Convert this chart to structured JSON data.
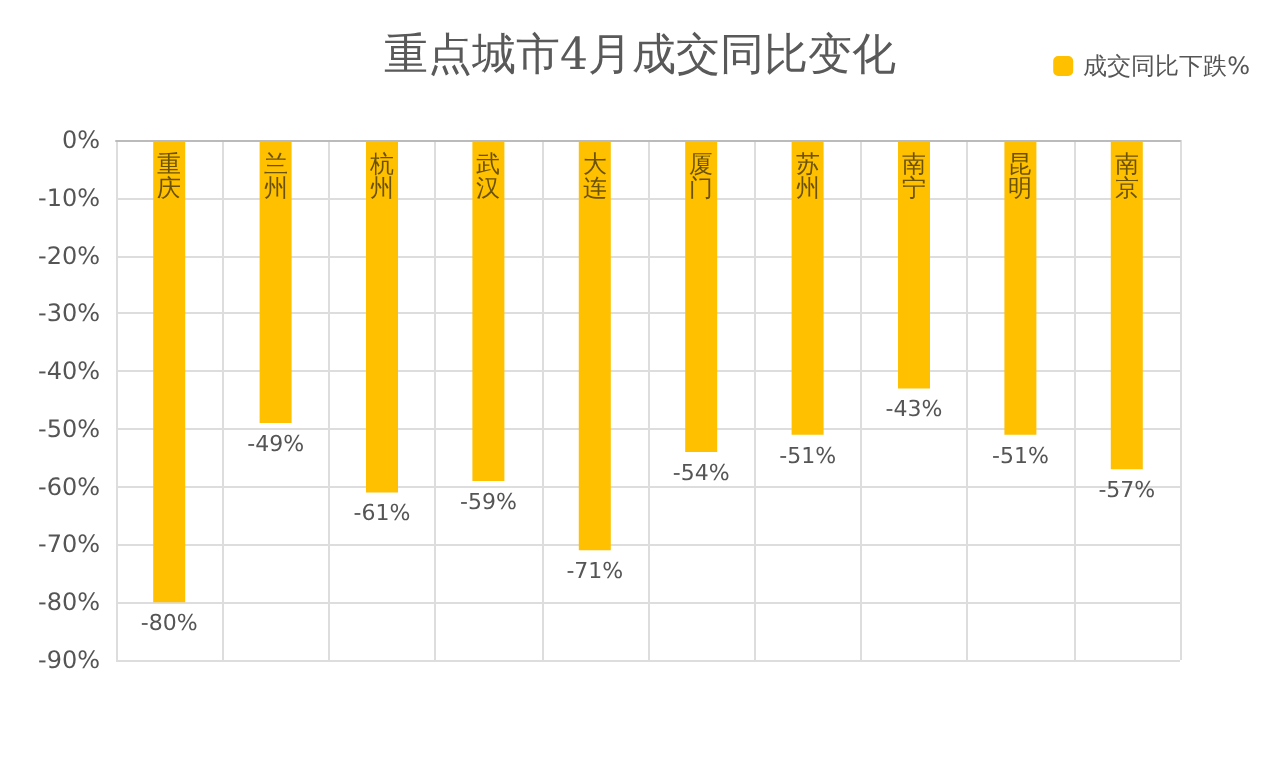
{
  "chart_data": {
    "type": "bar",
    "title": "重点城市4月成交同比变化",
    "categories": [
      "重庆",
      "兰州",
      "杭州",
      "武汉",
      "大连",
      "厦门",
      "苏州",
      "南宁",
      "昆明",
      "南京"
    ],
    "series": [
      {
        "name": "成交同比下跌%",
        "color": "#ffc000",
        "values": [
          -80,
          -49,
          -61,
          -59,
          -71,
          -54,
          -51,
          -43,
          -51,
          -57
        ],
        "value_labels": [
          "-80%",
          "-49%",
          "-61%",
          "-59%",
          "-71%",
          "-54%",
          "-51%",
          "-43%",
          "-51%",
          "-57%"
        ]
      }
    ],
    "ylim": [
      -90,
      0
    ],
    "yticks": [
      {
        "value": 0,
        "label": "0%"
      },
      {
        "value": -10,
        "label": "-10%"
      },
      {
        "value": -20,
        "label": "-20%"
      },
      {
        "value": -30,
        "label": "-30%"
      },
      {
        "value": -40,
        "label": "-40%"
      },
      {
        "value": -50,
        "label": "-50%"
      },
      {
        "value": -60,
        "label": "-60%"
      },
      {
        "value": -70,
        "label": "-70%"
      },
      {
        "value": -80,
        "label": "-80%"
      },
      {
        "value": -90,
        "label": "-90%"
      }
    ],
    "grid": true,
    "legend": "top right"
  }
}
